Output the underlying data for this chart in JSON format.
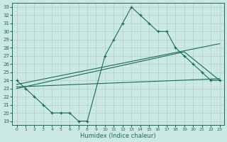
{
  "xlabel": "Humidex (Indice chaleur)",
  "bg_color": "#cce8e4",
  "grid_color": "#b0d8d0",
  "line_color": "#1a6b5a",
  "xlim": [
    -0.5,
    23.5
  ],
  "ylim": [
    18.5,
    33.5
  ],
  "xticks": [
    0,
    1,
    2,
    3,
    4,
    5,
    6,
    7,
    8,
    9,
    10,
    11,
    12,
    13,
    14,
    15,
    16,
    17,
    18,
    19,
    20,
    21,
    22,
    23
  ],
  "yticks": [
    19,
    20,
    21,
    22,
    23,
    24,
    25,
    26,
    27,
    28,
    29,
    30,
    31,
    32,
    33
  ],
  "line1_x": [
    0,
    1,
    2,
    3,
    4,
    5,
    6,
    7,
    8,
    10,
    11,
    12,
    13,
    14,
    15,
    16,
    17,
    18,
    19,
    20,
    21,
    22,
    23
  ],
  "line1_y": [
    24,
    23,
    22,
    21,
    20,
    20,
    20,
    19,
    19,
    27,
    29,
    31,
    33,
    32,
    31,
    30,
    30,
    28,
    27,
    26,
    25,
    24,
    24
  ],
  "line2_x": [
    0,
    23
  ],
  "line2_y": [
    23.2,
    24.2
  ],
  "line3_x": [
    0,
    23
  ],
  "line3_y": [
    23.5,
    28.5
  ],
  "line4_x": [
    0,
    19,
    23
  ],
  "line4_y": [
    23,
    27.5,
    24
  ]
}
